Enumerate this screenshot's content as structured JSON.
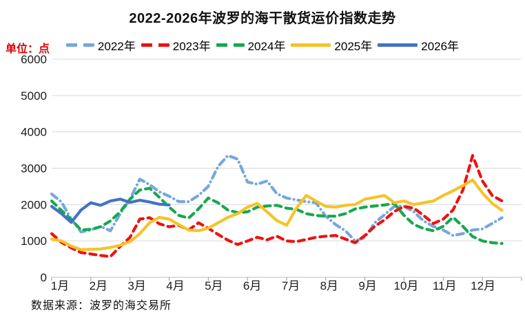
{
  "page": {
    "source_note": "数据来源：波罗的海交易所"
  },
  "colors": {
    "unit_label": "#DE0000",
    "gridline": "#D9D9D9",
    "axis_line": "#BFBFBF",
    "tick": "#999999",
    "axis_text": "#1A1A1A"
  },
  "chart_data": {
    "type": "line",
    "title": "2022-2026年波罗的海干散货运价指数走势",
    "unit_label": "单位：点",
    "ylabel": "单位：点",
    "xlabel": "",
    "ylim": [
      0,
      6000
    ],
    "y_ticks": [
      0,
      1000,
      2000,
      3000,
      4000,
      5000,
      6000
    ],
    "x_tick_labels": [
      "1月",
      "2月",
      "3月",
      "4月",
      "5月",
      "6月",
      "7月",
      "8月",
      "9月",
      "10月",
      "11月",
      "12月"
    ],
    "grid": "horizontal-only",
    "legend_position": "top",
    "x_unit": "week-of-year",
    "weeks_per_year": 48,
    "source": "数据来源：波罗的海交易所",
    "series": [
      {
        "name": "2022年",
        "color": "#76A7DC",
        "style": "dash-dot",
        "values": [
          2290,
          2070,
          1600,
          1250,
          1300,
          1400,
          1280,
          1750,
          2150,
          2700,
          2550,
          2350,
          2230,
          2080,
          2080,
          2250,
          2500,
          3050,
          3350,
          3250,
          2620,
          2560,
          2650,
          2300,
          2180,
          2130,
          2080,
          2050,
          1680,
          1450,
          1280,
          1000,
          1100,
          1500,
          1720,
          1950,
          1950,
          1800,
          1550,
          1400,
          1300,
          1150,
          1200,
          1300,
          1330,
          1480,
          1640
        ]
      },
      {
        "name": "2023年",
        "color": "#F01010",
        "style": "dash",
        "values": [
          1200,
          960,
          810,
          680,
          640,
          600,
          570,
          850,
          1100,
          1600,
          1640,
          1470,
          1390,
          1430,
          1300,
          1500,
          1350,
          1180,
          1020,
          900,
          1000,
          1100,
          1030,
          1130,
          1000,
          980,
          1040,
          1100,
          1130,
          1150,
          1050,
          950,
          1150,
          1400,
          1580,
          1810,
          1950,
          1900,
          1700,
          1480,
          1600,
          1850,
          2400,
          3350,
          2650,
          2250,
          2100
        ]
      },
      {
        "name": "2024年",
        "color": "#17A84E",
        "style": "dash",
        "values": [
          2100,
          1840,
          1590,
          1300,
          1320,
          1390,
          1550,
          1800,
          2150,
          2400,
          2450,
          2200,
          1930,
          1700,
          1630,
          1880,
          2180,
          2050,
          1850,
          1780,
          1800,
          1930,
          1960,
          1980,
          1900,
          1870,
          1750,
          1700,
          1680,
          1680,
          1750,
          1880,
          1930,
          1960,
          1990,
          2030,
          1700,
          1450,
          1340,
          1280,
          1400,
          1650,
          1400,
          1120,
          1000,
          950,
          930
        ]
      },
      {
        "name": "2025年",
        "color": "#F5C328",
        "style": "solid",
        "values": [
          1050,
          1000,
          860,
          760,
          770,
          780,
          820,
          880,
          980,
          1200,
          1500,
          1650,
          1600,
          1450,
          1300,
          1280,
          1350,
          1500,
          1650,
          1750,
          1930,
          2030,
          1800,
          1560,
          1430,
          1900,
          2250,
          2100,
          1950,
          1930,
          1980,
          2000,
          2150,
          2200,
          2250,
          2050,
          2100,
          2000,
          2050,
          2100,
          2250,
          2380,
          2520,
          2680,
          2320,
          2030,
          1840
        ]
      },
      {
        "name": "2026年",
        "color": "#4472C4",
        "style": "solid",
        "values": [
          1950,
          1750,
          1510,
          1850,
          2050,
          1980,
          2100,
          2150,
          2060,
          2120,
          2070,
          2010,
          1990
        ]
      }
    ]
  }
}
